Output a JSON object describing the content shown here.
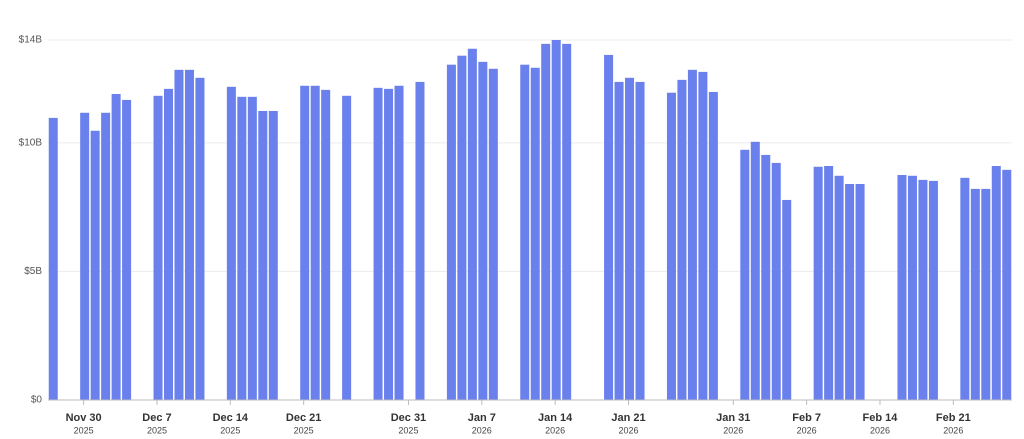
{
  "chart_data": {
    "type": "bar",
    "color": "#6a80ec",
    "grid": true,
    "x": [
      "2025-11-28",
      "2025-12-01",
      "2025-12-02",
      "2025-12-03",
      "2025-12-04",
      "2025-12-05",
      "2025-12-08",
      "2025-12-09",
      "2025-12-10",
      "2025-12-11",
      "2025-12-12",
      "2025-12-15",
      "2025-12-16",
      "2025-12-17",
      "2025-12-18",
      "2025-12-19",
      "2025-12-22",
      "2025-12-23",
      "2025-12-24",
      "2025-12-26",
      "2025-12-29",
      "2025-12-30",
      "2025-12-31",
      "2026-01-02",
      "2026-01-05",
      "2026-01-06",
      "2026-01-07",
      "2026-01-08",
      "2026-01-09",
      "2026-01-12",
      "2026-01-13",
      "2026-01-14",
      "2026-01-15",
      "2026-01-16",
      "2026-01-20",
      "2026-01-21",
      "2026-01-22",
      "2026-01-23",
      "2026-01-26",
      "2026-01-27",
      "2026-01-28",
      "2026-01-29",
      "2026-01-30",
      "2026-02-02",
      "2026-02-03",
      "2026-02-04",
      "2026-02-05",
      "2026-02-06",
      "2026-02-09",
      "2026-02-10",
      "2026-02-11",
      "2026-02-12",
      "2026-02-13",
      "2026-02-17",
      "2026-02-18",
      "2026-02-19",
      "2026-02-20",
      "2026-02-23",
      "2026-02-24",
      "2026-02-25",
      "2026-02-26",
      "2026-02-27"
    ],
    "values": [
      10.97,
      11.17,
      10.47,
      11.17,
      11.9,
      11.67,
      11.83,
      12.1,
      12.84,
      12.84,
      12.53,
      12.18,
      11.79,
      11.79,
      11.24,
      11.24,
      12.22,
      12.22,
      12.06,
      11.83,
      12.14,
      12.1,
      12.22,
      12.37,
      13.04,
      13.39,
      13.66,
      13.15,
      12.88,
      13.04,
      12.92,
      13.85,
      14.0,
      13.85,
      13.42,
      12.37,
      12.53,
      12.37,
      11.95,
      12.45,
      12.84,
      12.76,
      11.98,
      9.73,
      10.04,
      9.53,
      9.22,
      7.78,
      9.07,
      9.1,
      8.72,
      8.4,
      8.4,
      8.75,
      8.72,
      8.56,
      8.52,
      8.64,
      8.21,
      8.21,
      9.1,
      8.95
    ],
    "xlim": [
      "2025-11-28",
      "2026-02-27"
    ],
    "xticks": [
      {
        "value": "2025-11-30",
        "label": "Nov 30",
        "sublabel": "2025"
      },
      {
        "value": "2025-12-07",
        "label": "Dec 7",
        "sublabel": "2025"
      },
      {
        "value": "2025-12-14",
        "label": "Dec 14",
        "sublabel": "2025"
      },
      {
        "value": "2025-12-21",
        "label": "Dec 21",
        "sublabel": "2025"
      },
      {
        "value": "2025-12-31",
        "label": "Dec 31",
        "sublabel": "2025"
      },
      {
        "value": "2026-01-07",
        "label": "Jan 7",
        "sublabel": "2026"
      },
      {
        "value": "2026-01-14",
        "label": "Jan 14",
        "sublabel": "2026"
      },
      {
        "value": "2026-01-21",
        "label": "Jan 21",
        "sublabel": "2026"
      },
      {
        "value": "2026-01-31",
        "label": "Jan 31",
        "sublabel": "2026"
      },
      {
        "value": "2026-02-07",
        "label": "Feb 7",
        "sublabel": "2026"
      },
      {
        "value": "2026-02-14",
        "label": "Feb 14",
        "sublabel": "2026"
      },
      {
        "value": "2026-02-21",
        "label": "Feb 21",
        "sublabel": "2026"
      }
    ],
    "ylim": [
      0,
      14
    ],
    "yticks": [
      {
        "value": 0,
        "label": "$0"
      },
      {
        "value": 5,
        "label": "$5B"
      },
      {
        "value": 10,
        "label": "$10B"
      },
      {
        "value": 14,
        "label": "$14B"
      }
    ]
  }
}
